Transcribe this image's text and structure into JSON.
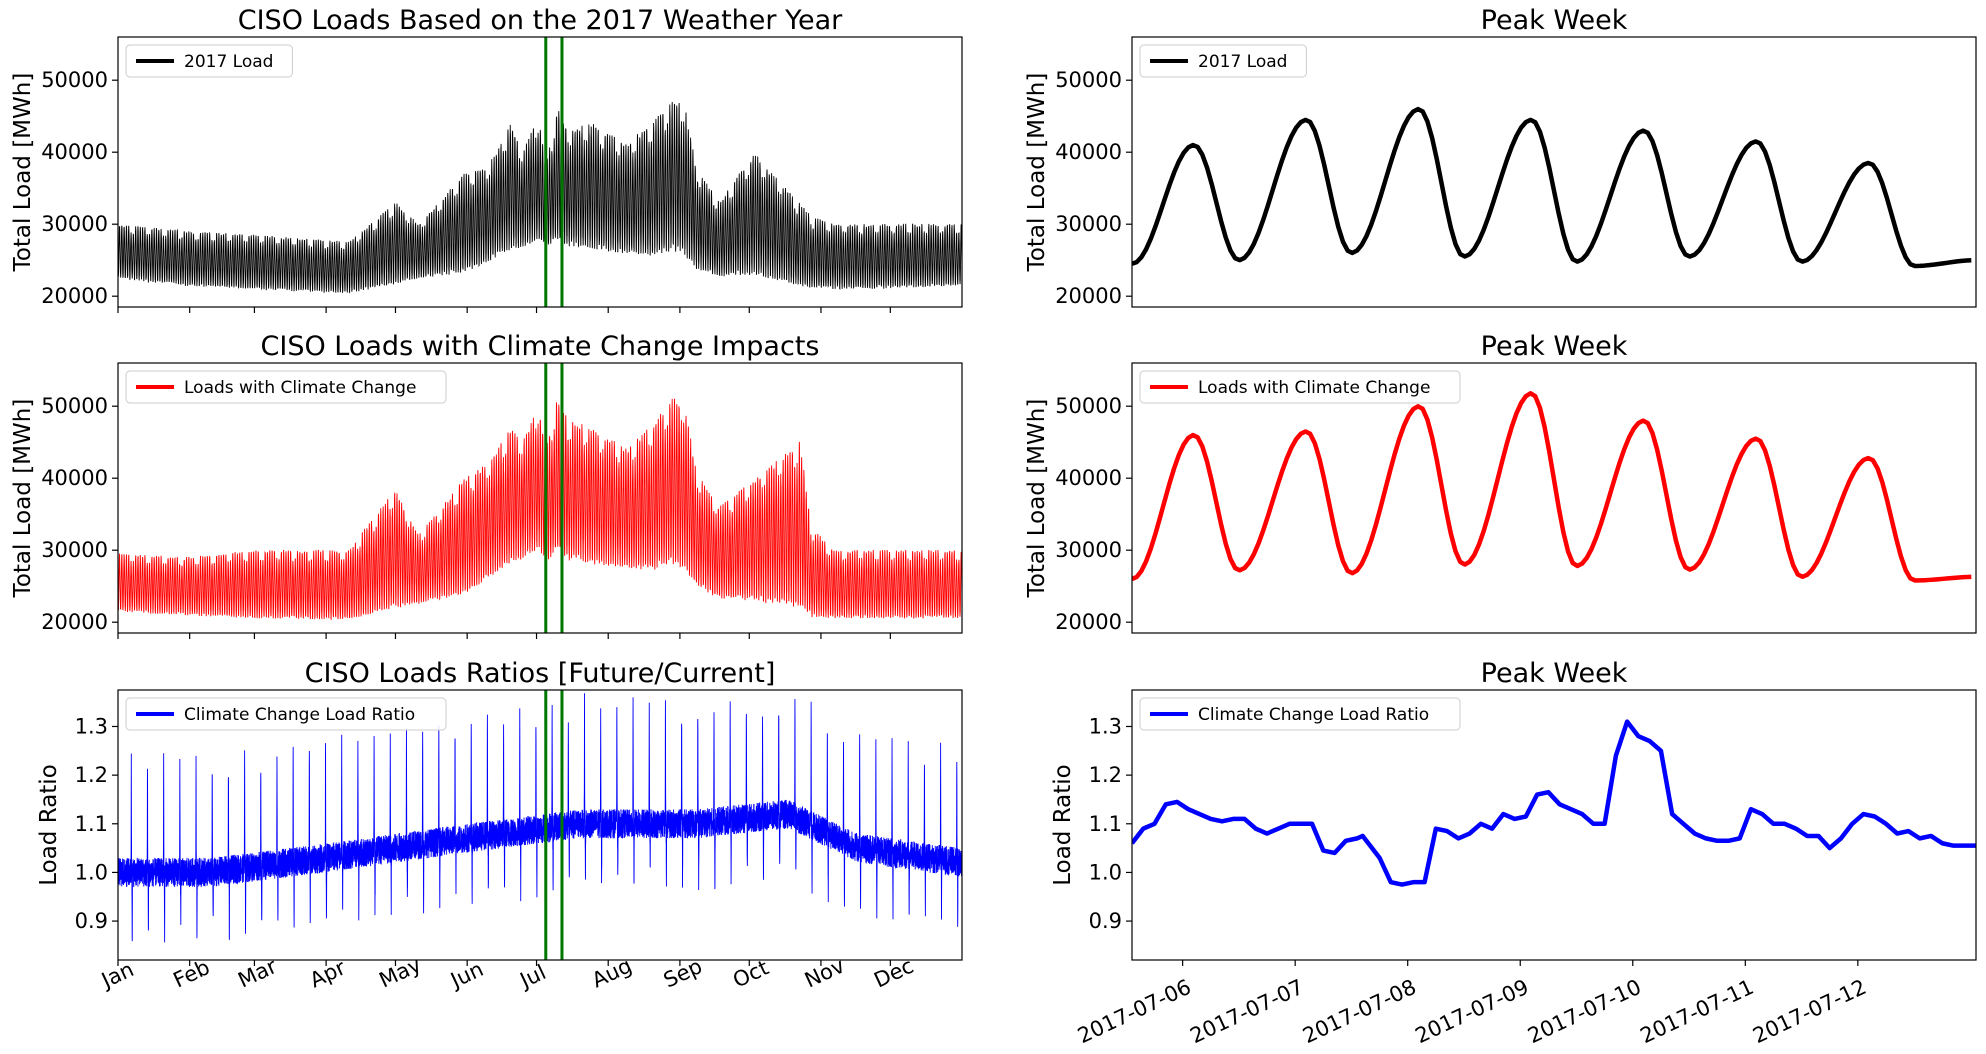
{
  "chart_data": [
    {
      "id": "p1",
      "type": "line",
      "title": "CISO Loads Based on the 2017 Weather Year",
      "ylabel": "Total Load [MWh]",
      "ylim": [
        18500,
        56000
      ],
      "yticks": [
        20000,
        30000,
        40000,
        50000
      ],
      "xlim": [
        0,
        365
      ],
      "xticks": [
        {
          "v": 0,
          "l": "Jan"
        },
        {
          "v": 31,
          "l": "Feb"
        },
        {
          "v": 59,
          "l": "Mar"
        },
        {
          "v": 90,
          "l": "Apr"
        },
        {
          "v": 120,
          "l": "May"
        },
        {
          "v": 151,
          "l": "Jun"
        },
        {
          "v": 181,
          "l": "Jul"
        },
        {
          "v": 212,
          "l": "Aug"
        },
        {
          "v": 243,
          "l": "Sep"
        },
        {
          "v": 273,
          "l": "Oct"
        },
        {
          "v": 304,
          "l": "Nov"
        },
        {
          "v": 334,
          "l": "Dec"
        }
      ],
      "show_xticklabels": false,
      "legend": "upper-left",
      "series": [
        {
          "name": "2017 Load",
          "color": "#000000",
          "kind": "annual",
          "envelope": {
            "x": [
              0,
              30,
              60,
              100,
              120,
              130,
              150,
              160,
              170,
              175,
              182,
              185,
              190,
              195,
              205,
              220,
              230,
              240,
              245,
              250,
              260,
              275,
              300,
              310,
              330,
              365
            ],
            "hi": [
              30000,
              29000,
              28500,
              27500,
              33000,
              30000,
              37000,
              38000,
              44000,
              40000,
              45000,
              38000,
              46000,
              43000,
              44000,
              41000,
              44000,
              47000,
              46500,
              38000,
              33000,
              40000,
              31000,
              30000,
              30000,
              30000
            ],
            "lo": [
              22000,
              21000,
              20500,
              20000,
              21000,
              22000,
              22500,
              24000,
              25500,
              26000,
              27000,
              26000,
              26500,
              26000,
              25500,
              25000,
              24500,
              25000,
              24500,
              23000,
              22000,
              22000,
              20500,
              20500,
              20500,
              21000
            ]
          }
        }
      ],
      "vlines": [
        185,
        192
      ],
      "vline_color": "#007700"
    },
    {
      "id": "p2",
      "type": "line",
      "title": "Peak Week",
      "ylabel": "Total Load [MWh]",
      "ylim": [
        18500,
        56000
      ],
      "yticks": [
        20000,
        30000,
        40000,
        50000
      ],
      "xlim": [
        0,
        7.5
      ],
      "xticks": [],
      "show_xticklabels": false,
      "legend": "upper-left",
      "series": [
        {
          "name": "2017 Load",
          "color": "#000000",
          "kind": "weekly",
          "daily_peaks": [
            41000,
            44500,
            46000,
            44500,
            43000,
            41500,
            38500
          ],
          "daily_troughs": [
            25000,
            26000,
            25500,
            24800,
            25500,
            24800,
            24200
          ],
          "start": 24500,
          "end": 25000
        }
      ]
    },
    {
      "id": "p3",
      "type": "line",
      "title": "CISO Loads with Climate Change Impacts",
      "ylabel": "Total Load [MWh]",
      "ylim": [
        18500,
        56000
      ],
      "yticks": [
        20000,
        30000,
        40000,
        50000
      ],
      "xlim": [
        0,
        365
      ],
      "xticks": [
        {
          "v": 0,
          "l": "Jan"
        },
        {
          "v": 31,
          "l": "Feb"
        },
        {
          "v": 59,
          "l": "Mar"
        },
        {
          "v": 90,
          "l": "Apr"
        },
        {
          "v": 120,
          "l": "May"
        },
        {
          "v": 151,
          "l": "Jun"
        },
        {
          "v": 181,
          "l": "Jul"
        },
        {
          "v": 212,
          "l": "Aug"
        },
        {
          "v": 243,
          "l": "Sep"
        },
        {
          "v": 273,
          "l": "Oct"
        },
        {
          "v": 304,
          "l": "Nov"
        },
        {
          "v": 334,
          "l": "Dec"
        }
      ],
      "show_xticklabels": false,
      "legend": "upper-left",
      "series": [
        {
          "name": "Loads with Climate Change",
          "color": "#ff0000",
          "kind": "annual",
          "envelope": {
            "x": [
              0,
              30,
              60,
              100,
              120,
              130,
              150,
              160,
              170,
              175,
              182,
              185,
              190,
              195,
              205,
              220,
              230,
              240,
              245,
              250,
              260,
              275,
              295,
              300,
              310,
              330,
              365
            ],
            "hi": [
              29500,
              29000,
              30000,
              30000,
              38500,
              32000,
              40000,
              42000,
              47000,
              45000,
              50000,
              44000,
              51000,
              48000,
              47000,
              44000,
              47000,
              51000,
              50500,
              41000,
              36000,
              40000,
              45000,
              33000,
              30000,
              30000,
              30000
            ],
            "lo": [
              21000,
              20500,
              20000,
              19800,
              21000,
              22000,
              23000,
              25000,
              27000,
              28000,
              29000,
              27500,
              28500,
              27500,
              27000,
              26500,
              26000,
              26500,
              26000,
              24000,
              22500,
              22000,
              20500,
              20000,
              20000,
              20000,
              20000
            ]
          }
        }
      ],
      "vlines": [
        185,
        192
      ],
      "vline_color": "#007700"
    },
    {
      "id": "p4",
      "type": "line",
      "title": "Peak Week",
      "ylabel": "Total Load [MWh]",
      "ylim": [
        18500,
        56000
      ],
      "yticks": [
        20000,
        30000,
        40000,
        50000
      ],
      "xlim": [
        0,
        7.5
      ],
      "xticks": [],
      "show_xticklabels": false,
      "legend": "upper-left",
      "series": [
        {
          "name": "Loads with Climate Change",
          "color": "#ff0000",
          "kind": "weekly",
          "daily_peaks": [
            46000,
            46500,
            50000,
            51800,
            48000,
            45500,
            42800
          ],
          "daily_troughs": [
            27200,
            26800,
            28000,
            27800,
            27300,
            26300,
            25800
          ],
          "start": 26000,
          "end": 26300
        }
      ]
    },
    {
      "id": "p5",
      "type": "line",
      "title": "CISO Loads Ratios [Future/Current]",
      "ylabel": "Load Ratio",
      "ylim": [
        0.82,
        1.375
      ],
      "yticks": [
        0.9,
        1.0,
        1.1,
        1.2,
        1.3
      ],
      "xlim": [
        0,
        365
      ],
      "xticks": [
        {
          "v": 0,
          "l": "Jan"
        },
        {
          "v": 31,
          "l": "Feb"
        },
        {
          "v": 59,
          "l": "Mar"
        },
        {
          "v": 90,
          "l": "Apr"
        },
        {
          "v": 120,
          "l": "May"
        },
        {
          "v": 151,
          "l": "Jun"
        },
        {
          "v": 181,
          "l": "Jul"
        },
        {
          "v": 212,
          "l": "Aug"
        },
        {
          "v": 243,
          "l": "Sep"
        },
        {
          "v": 273,
          "l": "Oct"
        },
        {
          "v": 304,
          "l": "Nov"
        },
        {
          "v": 334,
          "l": "Dec"
        }
      ],
      "show_xticklabels": true,
      "legend": "upper-left",
      "series": [
        {
          "name": "Climate Change Load Ratio",
          "color": "#0000ff",
          "kind": "ratio"
        }
      ],
      "vlines": [
        185,
        192
      ],
      "vline_color": "#007700"
    },
    {
      "id": "p6",
      "type": "line",
      "title": "Peak Week",
      "ylabel": "Load Ratio",
      "ylim": [
        0.82,
        1.375
      ],
      "yticks": [
        0.9,
        1.0,
        1.1,
        1.2,
        1.3
      ],
      "xlim": [
        0,
        7.5
      ],
      "xticks": [
        {
          "v": 0.45,
          "l": "2017-07-06"
        },
        {
          "v": 1.45,
          "l": "2017-07-07"
        },
        {
          "v": 2.45,
          "l": "2017-07-08"
        },
        {
          "v": 3.45,
          "l": "2017-07-09"
        },
        {
          "v": 4.45,
          "l": "2017-07-10"
        },
        {
          "v": 5.45,
          "l": "2017-07-11"
        },
        {
          "v": 6.45,
          "l": "2017-07-12"
        }
      ],
      "show_xticklabels": true,
      "legend": "upper-left",
      "series": [
        {
          "name": "Climate Change Load Ratio",
          "color": "#0000ff",
          "kind": "points",
          "x": [
            0,
            0.1,
            0.2,
            0.3,
            0.4,
            0.5,
            0.6,
            0.7,
            0.8,
            0.9,
            1.0,
            1.1,
            1.2,
            1.3,
            1.4,
            1.5,
            1.6,
            1.7,
            1.8,
            1.9,
            2.0,
            2.05,
            2.1,
            2.2,
            2.3,
            2.4,
            2.5,
            2.6,
            2.7,
            2.8,
            2.9,
            3.0,
            3.1,
            3.2,
            3.3,
            3.4,
            3.5,
            3.6,
            3.7,
            3.8,
            3.9,
            4.0,
            4.05,
            4.1,
            4.2,
            4.3,
            4.4,
            4.5,
            4.6,
            4.7,
            4.8,
            4.9,
            5.0,
            5.1,
            5.2,
            5.3,
            5.4,
            5.5,
            5.6,
            5.7,
            5.8,
            5.9,
            6.0,
            6.1,
            6.2,
            6.3,
            6.4,
            6.5,
            6.6,
            6.7,
            6.8,
            6.9,
            7.0,
            7.1,
            7.2,
            7.3,
            7.4,
            7.5
          ],
          "y": [
            1.06,
            1.09,
            1.1,
            1.14,
            1.145,
            1.13,
            1.12,
            1.11,
            1.105,
            1.11,
            1.11,
            1.09,
            1.08,
            1.09,
            1.1,
            1.1,
            1.1,
            1.045,
            1.04,
            1.065,
            1.07,
            1.075,
            1.06,
            1.03,
            0.98,
            0.975,
            0.98,
            0.98,
            1.09,
            1.085,
            1.07,
            1.08,
            1.1,
            1.09,
            1.12,
            1.11,
            1.115,
            1.16,
            1.165,
            1.14,
            1.13,
            1.12,
            1.11,
            1.1,
            1.1,
            1.24,
            1.31,
            1.28,
            1.27,
            1.25,
            1.12,
            1.1,
            1.08,
            1.07,
            1.065,
            1.065,
            1.07,
            1.13,
            1.12,
            1.1,
            1.1,
            1.09,
            1.075,
            1.075,
            1.05,
            1.07,
            1.1,
            1.12,
            1.115,
            1.1,
            1.08,
            1.085,
            1.07,
            1.075,
            1.06,
            1.055,
            1.055,
            1.055
          ]
        }
      ]
    }
  ]
}
